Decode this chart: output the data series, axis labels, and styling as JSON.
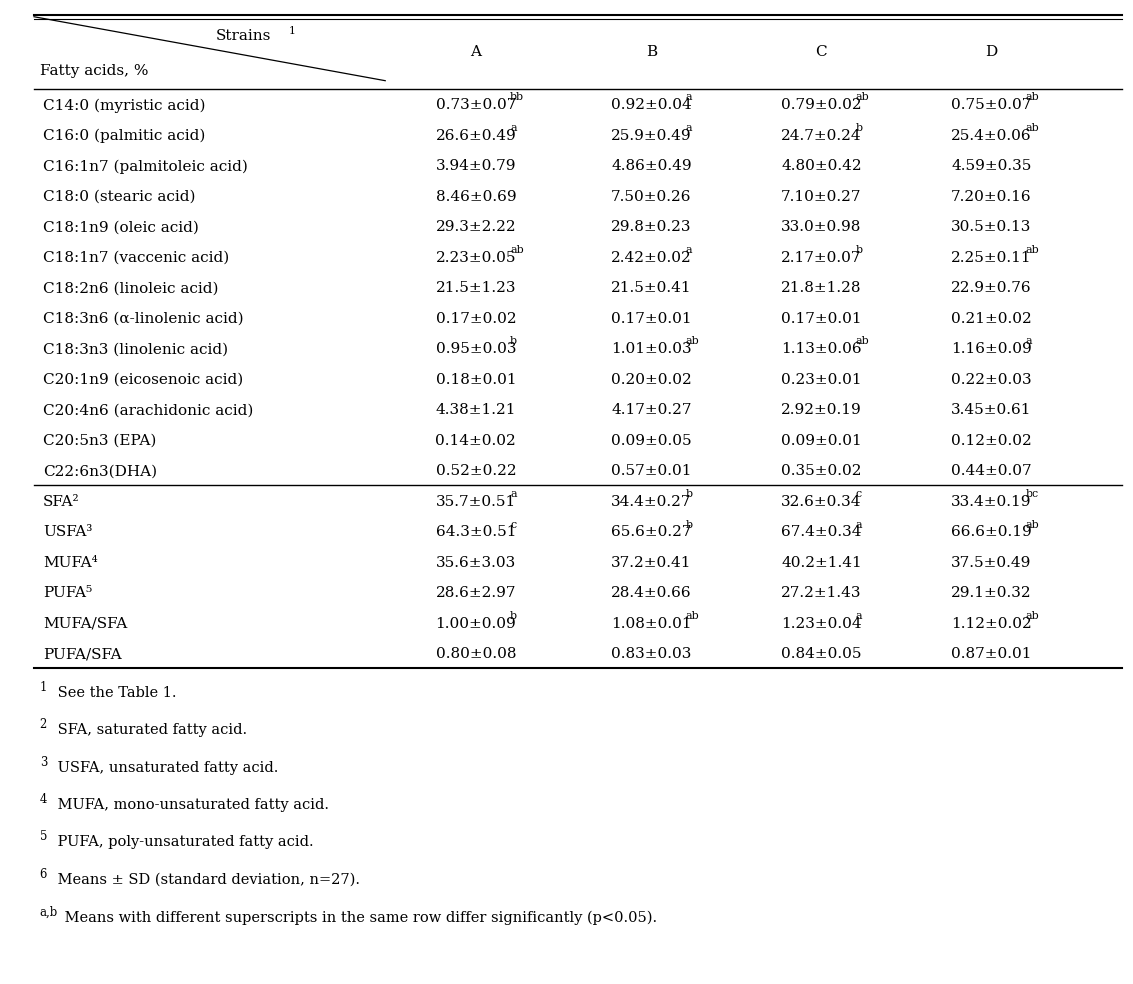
{
  "header_strains": "Strains",
  "header_strains_sup": "1",
  "header_fatty": "Fatty acids, %",
  "columns": [
    "A",
    "B",
    "C",
    "D"
  ],
  "rows": [
    {
      "label": "C14:0 (myristic acid)",
      "A": "0.73±0.07",
      "A_sup": "bb",
      "B": "0.92±0.04",
      "B_sup": "a",
      "C": "0.79±0.02",
      "C_sup": "ab",
      "D": "0.75±0.07",
      "D_sup": "ab",
      "separator_before": false
    },
    {
      "label": "C16:0 (palmitic acid)",
      "A": "26.6±0.49",
      "A_sup": "a",
      "B": "25.9±0.49",
      "B_sup": "a",
      "C": "24.7±0.24",
      "C_sup": "b",
      "D": "25.4±0.06",
      "D_sup": "ab",
      "separator_before": false
    },
    {
      "label": "C16:1n7 (palmitoleic acid)",
      "A": "3.94±0.79",
      "A_sup": "",
      "B": "4.86±0.49",
      "B_sup": "",
      "C": "4.80±0.42",
      "C_sup": "",
      "D": "4.59±0.35",
      "D_sup": "",
      "separator_before": false
    },
    {
      "label": "C18:0 (stearic acid)",
      "A": "8.46±0.69",
      "A_sup": "",
      "B": "7.50±0.26",
      "B_sup": "",
      "C": "7.10±0.27",
      "C_sup": "",
      "D": "7.20±0.16",
      "D_sup": "",
      "separator_before": false
    },
    {
      "label": "C18:1n9 (oleic acid)",
      "A": "29.3±2.22",
      "A_sup": "",
      "B": "29.8±0.23",
      "B_sup": "",
      "C": "33.0±0.98",
      "C_sup": "",
      "D": "30.5±0.13",
      "D_sup": "",
      "separator_before": false
    },
    {
      "label": "C18:1n7 (vaccenic acid)",
      "A": "2.23±0.05",
      "A_sup": "ab",
      "B": "2.42±0.02",
      "B_sup": "a",
      "C": "2.17±0.07",
      "C_sup": "b",
      "D": "2.25±0.11",
      "D_sup": "ab",
      "separator_before": false
    },
    {
      "label": "C18:2n6 (linoleic acid)",
      "A": "21.5±1.23",
      "A_sup": "",
      "B": "21.5±0.41",
      "B_sup": "",
      "C": "21.8±1.28",
      "C_sup": "",
      "D": "22.9±0.76",
      "D_sup": "",
      "separator_before": false
    },
    {
      "label": "C18:3n6 (α-linolenic acid)",
      "A": "0.17±0.02",
      "A_sup": "",
      "B": "0.17±0.01",
      "B_sup": "",
      "C": "0.17±0.01",
      "C_sup": "",
      "D": "0.21±0.02",
      "D_sup": "",
      "separator_before": false
    },
    {
      "label": "C18:3n3 (linolenic acid)",
      "A": "0.95±0.03",
      "A_sup": "b",
      "B": "1.01±0.03",
      "B_sup": "ab",
      "C": "1.13±0.06",
      "C_sup": "ab",
      "D": "1.16±0.09",
      "D_sup": "a",
      "separator_before": false
    },
    {
      "label": "C20:1n9 (eicosenoic acid)",
      "A": "0.18±0.01",
      "A_sup": "",
      "B": "0.20±0.02",
      "B_sup": "",
      "C": "0.23±0.01",
      "C_sup": "",
      "D": "0.22±0.03",
      "D_sup": "",
      "separator_before": false
    },
    {
      "label": "C20:4n6 (arachidonic acid)",
      "A": "4.38±1.21",
      "A_sup": "",
      "B": "4.17±0.27",
      "B_sup": "",
      "C": "2.92±0.19",
      "C_sup": "",
      "D": "3.45±0.61",
      "D_sup": "",
      "separator_before": false
    },
    {
      "label": "C20:5n3 (EPA)",
      "A": "0.14±0.02",
      "A_sup": "",
      "B": "0.09±0.05",
      "B_sup": "",
      "C": "0.09±0.01",
      "C_sup": "",
      "D": "0.12±0.02",
      "D_sup": "",
      "separator_before": false
    },
    {
      "label": "C22:6n3(DHA)",
      "A": "0.52±0.22",
      "A_sup": "",
      "B": "0.57±0.01",
      "B_sup": "",
      "C": "0.35±0.02",
      "C_sup": "",
      "D": "0.44±0.07",
      "D_sup": "",
      "separator_before": false
    },
    {
      "label": "SFA²",
      "A": "35.7±0.51",
      "A_sup": "a",
      "B": "34.4±0.27",
      "B_sup": "b",
      "C": "32.6±0.34",
      "C_sup": "c",
      "D": "33.4±0.19",
      "D_sup": "bc",
      "separator_before": true
    },
    {
      "label": "USFA³",
      "A": "64.3±0.51",
      "A_sup": "c",
      "B": "65.6±0.27",
      "B_sup": "b",
      "C": "67.4±0.34",
      "C_sup": "a",
      "D": "66.6±0.19",
      "D_sup": "ab",
      "separator_before": false
    },
    {
      "label": "MUFA⁴",
      "A": "35.6±3.03",
      "A_sup": "",
      "B": "37.2±0.41",
      "B_sup": "",
      "C": "40.2±1.41",
      "C_sup": "",
      "D": "37.5±0.49",
      "D_sup": "",
      "separator_before": false
    },
    {
      "label": "PUFA⁵",
      "A": "28.6±2.97",
      "A_sup": "",
      "B": "28.4±0.66",
      "B_sup": "",
      "C": "27.2±1.43",
      "C_sup": "",
      "D": "29.1±0.32",
      "D_sup": "",
      "separator_before": false
    },
    {
      "label": "MUFA/SFA",
      "A": "1.00±0.09",
      "A_sup": "b",
      "B": "1.08±0.01",
      "B_sup": "ab",
      "C": "1.23±0.04",
      "C_sup": "a",
      "D": "1.12±0.02",
      "D_sup": "ab",
      "separator_before": false
    },
    {
      "label": "PUFA/SFA",
      "A": "0.80±0.08",
      "A_sup": "",
      "B": "0.83±0.03",
      "B_sup": "",
      "C": "0.84±0.05",
      "C_sup": "",
      "D": "0.87±0.01",
      "D_sup": "",
      "separator_before": false
    }
  ],
  "footnotes": [
    [
      "1",
      " See the Table 1."
    ],
    [
      "2",
      " SFA, saturated fatty acid."
    ],
    [
      "3",
      " USFA, unsaturated fatty acid."
    ],
    [
      "4",
      " MUFA, mono-unsaturated fatty acid."
    ],
    [
      "5",
      " PUFA, poly-unsaturated fatty acid."
    ],
    [
      "6",
      " Means ± SD (standard deviation, n=27)."
    ],
    [
      "a,b",
      " Means with different superscripts in the same row differ significantly (p<0.05)."
    ]
  ],
  "bg_color": "#ffffff",
  "text_color": "#000000",
  "line_color": "#000000",
  "body_fontsize": 11,
  "header_fontsize": 11,
  "footnote_fontsize": 10.5
}
